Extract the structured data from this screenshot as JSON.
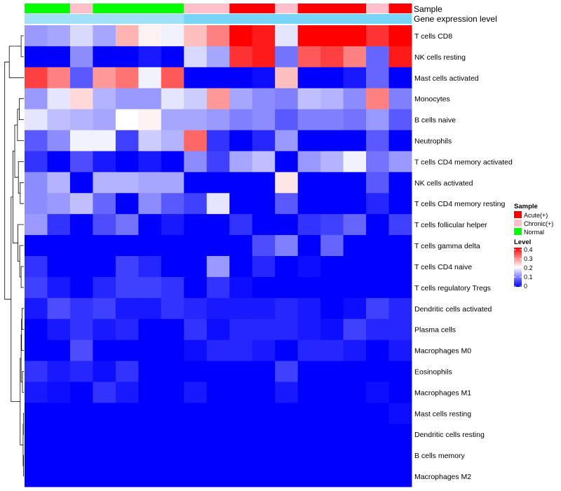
{
  "chart_data": {
    "type": "heatmap",
    "title": "",
    "annotation_tracks": [
      {
        "name": "Sample",
        "values": [
          "Normal",
          "Normal",
          "Chronic(+)",
          "Normal",
          "Normal",
          "Normal",
          "Normal",
          "Chronic(+)",
          "Chronic(+)",
          "Acute(+)",
          "Acute(+)",
          "Chronic(+)",
          "Acute(+)",
          "Acute(+)",
          "Acute(+)",
          "Chronic(+)",
          "Acute(+)"
        ]
      },
      {
        "name": "Gene expression level",
        "values": [
          0.5,
          0.5,
          0.5,
          0.5,
          0.5,
          0.5,
          0.5,
          0.8,
          0.8,
          0.8,
          0.8,
          0.8,
          0.8,
          0.8,
          0.8,
          0.8,
          0.8
        ]
      }
    ],
    "rows": [
      "T cells CD8",
      "NK cells resting",
      "Mast cells activated",
      "Monocytes",
      "B cells naive",
      "Neutrophils",
      "T cells CD4 memory activated",
      "NK cells activated",
      "T cells CD4 memory resting",
      "T cells follicular helper",
      "T cells gamma delta",
      "T cells CD4 naive",
      "T cells regulatory  Tregs",
      "Dendritic cells activated",
      "Plasma cells",
      "Macrophages M0",
      "Eosinophils",
      "Macrophages M1",
      "Mast cells resting",
      "Dendritic cells resting",
      "B cells memory",
      "Macrophages M2"
    ],
    "values": [
      [
        0.12,
        0.13,
        0.17,
        0.13,
        0.26,
        0.21,
        0.19,
        0.25,
        0.3,
        0.4,
        0.38,
        0.18,
        0.4,
        0.4,
        0.4,
        0.36,
        0.4
      ],
      [
        0.0,
        0.0,
        0.11,
        0.0,
        0.0,
        0.02,
        0.0,
        0.17,
        0.13,
        0.36,
        0.38,
        0.09,
        0.33,
        0.35,
        0.3,
        0.08,
        0.38
      ],
      [
        0.35,
        0.3,
        0.07,
        0.28,
        0.31,
        0.19,
        0.33,
        0.0,
        0.0,
        0.0,
        0.01,
        0.25,
        0.0,
        0.0,
        0.02,
        0.08,
        0.0
      ],
      [
        0.12,
        0.18,
        0.23,
        0.14,
        0.12,
        0.12,
        0.18,
        0.16,
        0.28,
        0.13,
        0.11,
        0.1,
        0.15,
        0.14,
        0.11,
        0.3,
        0.1
      ],
      [
        0.18,
        0.15,
        0.14,
        0.13,
        0.2,
        0.21,
        0.13,
        0.13,
        0.12,
        0.1,
        0.11,
        0.07,
        0.1,
        0.1,
        0.09,
        0.12,
        0.07
      ],
      [
        0.07,
        0.11,
        0.19,
        0.19,
        0.05,
        0.16,
        0.14,
        0.32,
        0.04,
        0.0,
        0.03,
        0.12,
        0.0,
        0.0,
        0.0,
        0.07,
        0.0
      ],
      [
        0.04,
        0.0,
        0.06,
        0.02,
        0.0,
        0.02,
        0.0,
        0.11,
        0.05,
        0.13,
        0.15,
        0.0,
        0.12,
        0.14,
        0.19,
        0.09,
        0.12
      ],
      [
        0.11,
        0.14,
        0.0,
        0.14,
        0.14,
        0.13,
        0.13,
        0.0,
        0.0,
        0.0,
        0.0,
        0.22,
        0.0,
        0.0,
        0.0,
        0.07,
        0.0
      ],
      [
        0.11,
        0.12,
        0.15,
        0.08,
        0.0,
        0.11,
        0.07,
        0.05,
        0.18,
        0.0,
        0.0,
        0.07,
        0.0,
        0.0,
        0.0,
        0.03,
        0.0
      ],
      [
        0.12,
        0.04,
        0.0,
        0.06,
        0.09,
        0.0,
        0.02,
        0.0,
        0.0,
        0.04,
        0.0,
        0.0,
        0.04,
        0.05,
        0.08,
        0.0,
        0.05
      ],
      [
        0.0,
        0.0,
        0.0,
        0.0,
        0.0,
        0.0,
        0.0,
        0.0,
        0.0,
        0.0,
        0.06,
        0.1,
        0.0,
        0.08,
        0.0,
        0.0,
        0.0
      ],
      [
        0.04,
        0.0,
        0.0,
        0.0,
        0.05,
        0.03,
        0.0,
        0.0,
        0.12,
        0.0,
        0.03,
        0.0,
        0.01,
        0.0,
        0.0,
        0.0,
        0.0
      ],
      [
        0.05,
        0.02,
        0.0,
        0.03,
        0.05,
        0.05,
        0.04,
        0.0,
        0.04,
        0.01,
        0.0,
        0.0,
        0.0,
        0.0,
        0.0,
        0.0,
        0.0
      ],
      [
        0.02,
        0.06,
        0.04,
        0.05,
        0.02,
        0.02,
        0.04,
        0.03,
        0.02,
        0.02,
        0.02,
        0.03,
        0.02,
        0.0,
        0.01,
        0.05,
        0.03
      ],
      [
        0.0,
        0.02,
        0.04,
        0.02,
        0.03,
        0.0,
        0.0,
        0.04,
        0.01,
        0.03,
        0.03,
        0.03,
        0.02,
        0.01,
        0.05,
        0.03,
        0.03
      ],
      [
        0.0,
        0.0,
        0.06,
        0.0,
        0.0,
        0.0,
        0.0,
        0.01,
        0.03,
        0.03,
        0.02,
        0.0,
        0.03,
        0.03,
        0.02,
        0.0,
        0.02
      ],
      [
        0.04,
        0.02,
        0.03,
        0.01,
        0.04,
        0.0,
        0.0,
        0.0,
        0.0,
        0.0,
        0.0,
        0.05,
        0.0,
        0.0,
        0.0,
        0.0,
        0.0
      ],
      [
        0.02,
        0.01,
        0.0,
        0.04,
        0.02,
        0.0,
        0.0,
        0.02,
        0.0,
        0.0,
        0.0,
        0.02,
        0.0,
        0.0,
        0.0,
        0.01,
        0.0
      ],
      [
        0.0,
        0.0,
        0.0,
        0.0,
        0.0,
        0.0,
        0.0,
        0.0,
        0.0,
        0.0,
        0.0,
        0.0,
        0.0,
        0.0,
        0.0,
        0.0,
        0.01
      ],
      [
        0.0,
        0.0,
        0.0,
        0.0,
        0.0,
        0.0,
        0.0,
        0.0,
        0.0,
        0.0,
        0.0,
        0.0,
        0.0,
        0.0,
        0.0,
        0.0,
        0.0
      ],
      [
        0.0,
        0.0,
        0.0,
        0.0,
        0.0,
        0.0,
        0.0,
        0.0,
        0.0,
        0.0,
        0.0,
        0.0,
        0.0,
        0.0,
        0.0,
        0.0,
        0.0
      ],
      [
        0.0,
        0.0,
        0.0,
        0.0,
        0.0,
        0.0,
        0.0,
        0.0,
        0.0,
        0.0,
        0.0,
        0.0,
        0.0,
        0.0,
        0.0,
        0.0,
        0.0
      ]
    ],
    "row_dendrogram": true,
    "legends": {
      "sample": {
        "title": "Sample",
        "entries": [
          {
            "label": "Acute(+)",
            "color": "#ff0000"
          },
          {
            "label": "Chronic(+)",
            "color": "#ffc0cb"
          },
          {
            "label": "Normal",
            "color": "#00ff00"
          }
        ]
      },
      "level": {
        "title": "Level",
        "ticks": [
          "0.4",
          "0.3",
          "0.2",
          "0.1",
          "0"
        ],
        "range": [
          0,
          0.4
        ]
      }
    },
    "colors": {
      "low": "#0000ff",
      "mid": "#ffffff",
      "high": "#ff0000",
      "gene_light": "#e6f3fa",
      "gene_dark": "#5ecdf6"
    }
  }
}
